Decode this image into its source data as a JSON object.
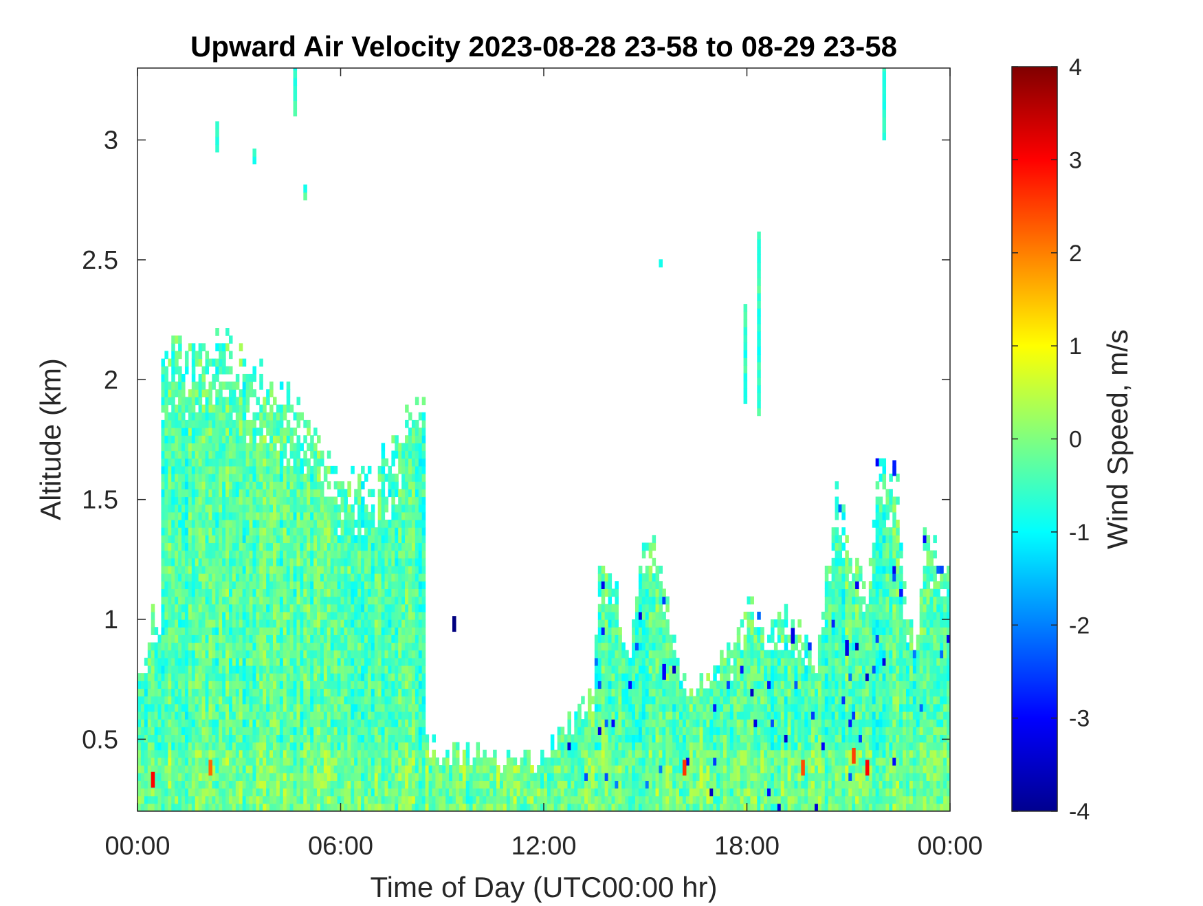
{
  "chart_data": {
    "type": "heatmap",
    "title": "Upward Air Velocity 2023-08-28 23-58 to 08-29 23-58",
    "xlabel": "Time of Day (UTC00:00 hr)",
    "ylabel": "Altitude (km)",
    "colorbar_label": "Wind Speed, m/s",
    "colormap": "jet",
    "x_unit": "hours",
    "xlim": [
      0,
      24
    ],
    "ylim": [
      0.2,
      3.3
    ],
    "clim": [
      -4,
      4
    ],
    "xticks": [
      0,
      6,
      12,
      18,
      24
    ],
    "xtick_labels": [
      "00:00",
      "06:00",
      "12:00",
      "18:00",
      "00:00"
    ],
    "yticks": [
      0.5,
      1,
      1.5,
      2,
      2.5,
      3
    ],
    "ytick_labels": [
      "0.5",
      "1",
      "1.5",
      "2",
      "2.5",
      "3"
    ],
    "cticks": [
      -4,
      -3,
      -2,
      -1,
      0,
      1,
      2,
      3,
      4
    ],
    "ctick_labels": [
      "-4",
      "-3",
      "-2",
      "-1",
      "0",
      "1",
      "2",
      "3",
      "4"
    ],
    "data_top_altitude_km": [
      [
        0.0,
        0.75
      ],
      [
        0.3,
        0.85
      ],
      [
        0.4,
        1.0
      ],
      [
        0.6,
        1.0
      ],
      [
        0.65,
        2.1
      ],
      [
        1.0,
        2.15
      ],
      [
        1.5,
        2.1
      ],
      [
        2.0,
        2.15
      ],
      [
        2.5,
        2.15
      ],
      [
        3.0,
        2.1
      ],
      [
        3.5,
        2.05
      ],
      [
        4.0,
        2.0
      ],
      [
        4.5,
        1.9
      ],
      [
        5.0,
        1.85
      ],
      [
        5.5,
        1.7
      ],
      [
        6.0,
        1.6
      ],
      [
        6.5,
        1.55
      ],
      [
        7.0,
        1.6
      ],
      [
        7.5,
        1.75
      ],
      [
        8.0,
        1.85
      ],
      [
        8.3,
        1.95
      ],
      [
        8.45,
        0.45
      ],
      [
        9.0,
        0.43
      ],
      [
        10.0,
        0.42
      ],
      [
        11.0,
        0.42
      ],
      [
        12.0,
        0.44
      ],
      [
        12.8,
        0.55
      ],
      [
        13.4,
        0.7
      ],
      [
        13.6,
        1.3
      ],
      [
        14.0,
        1.2
      ],
      [
        14.5,
        0.9
      ],
      [
        15.0,
        1.45
      ],
      [
        15.5,
        1.2
      ],
      [
        16.0,
        0.75
      ],
      [
        16.5,
        0.7
      ],
      [
        17.0,
        0.8
      ],
      [
        17.5,
        0.9
      ],
      [
        18.0,
        1.1
      ],
      [
        18.5,
        0.95
      ],
      [
        19.0,
        1.0
      ],
      [
        19.5,
        0.95
      ],
      [
        20.0,
        0.85
      ],
      [
        20.3,
        1.2
      ],
      [
        20.6,
        1.6
      ],
      [
        21.0,
        1.3
      ],
      [
        21.5,
        1.15
      ],
      [
        21.8,
        1.6
      ],
      [
        22.4,
        1.6
      ],
      [
        22.7,
        1.0
      ],
      [
        23.0,
        0.9
      ],
      [
        23.2,
        1.4
      ],
      [
        23.5,
        1.3
      ],
      [
        24.0,
        1.1
      ]
    ],
    "notable_values": [
      {
        "time_hr": 0.4,
        "altitude_km": 0.3,
        "value": 3.0
      },
      {
        "time_hr": 2.1,
        "altitude_km": 0.35,
        "value": 2.2
      },
      {
        "time_hr": 16.1,
        "altitude_km": 0.35,
        "value": 2.6
      },
      {
        "time_hr": 19.6,
        "altitude_km": 0.35,
        "value": 2.4
      },
      {
        "time_hr": 21.1,
        "altitude_km": 0.4,
        "value": 2.5
      },
      {
        "time_hr": 21.5,
        "altitude_km": 0.35,
        "value": 3.0
      },
      {
        "time_hr": 9.3,
        "altitude_km": 0.95,
        "value": -4.0
      },
      {
        "time_hr": 15.5,
        "altitude_km": 0.75,
        "value": -3.0
      },
      {
        "time_hr": 19.3,
        "altitude_km": 0.9,
        "value": -3.2
      },
      {
        "time_hr": 20.9,
        "altitude_km": 0.85,
        "value": -3.2
      },
      {
        "time_hr": 22.3,
        "altitude_km": 1.6,
        "value": -2.8
      }
    ],
    "isolated_echoes": [
      {
        "time_hr": 4.6,
        "alt_from": 3.1,
        "alt_to": 3.3
      },
      {
        "time_hr": 4.9,
        "alt_from": 2.75,
        "alt_to": 2.8
      },
      {
        "time_hr": 2.3,
        "alt_from": 2.95,
        "alt_to": 3.05
      },
      {
        "time_hr": 3.4,
        "alt_from": 2.9,
        "alt_to": 2.95
      },
      {
        "time_hr": 18.3,
        "alt_from": 1.85,
        "alt_to": 2.6
      },
      {
        "time_hr": 17.9,
        "alt_from": 1.9,
        "alt_to": 2.3
      },
      {
        "time_hr": 22.0,
        "alt_from": 3.0,
        "alt_to": 3.3
      },
      {
        "time_hr": 15.4,
        "alt_from": 2.47,
        "alt_to": 2.5
      }
    ]
  }
}
